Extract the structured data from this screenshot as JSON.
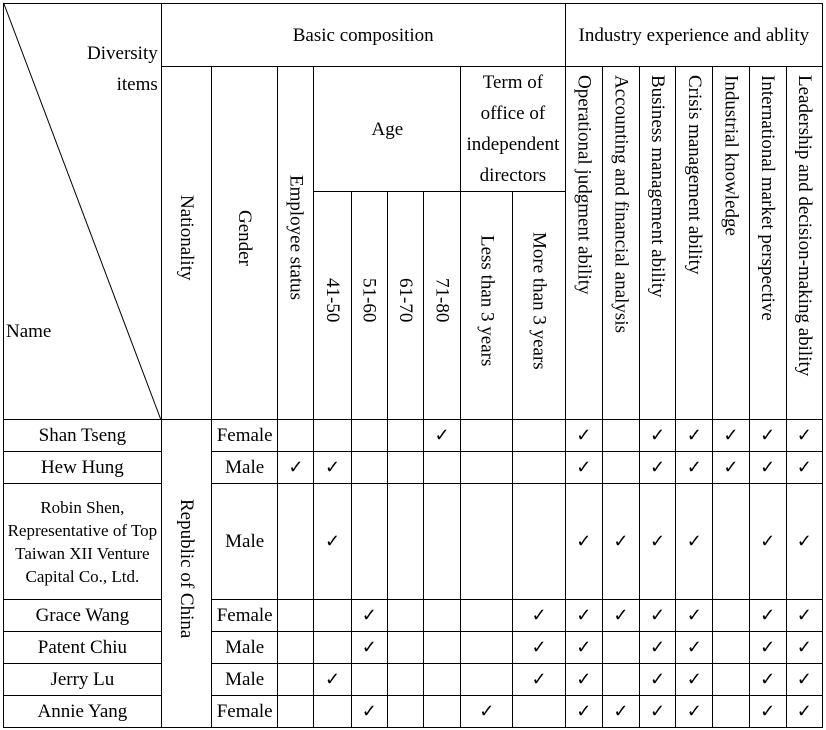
{
  "header": {
    "diversity_items": "Diversity items",
    "name": "Name",
    "basic_composition": "Basic composition",
    "industry_experience": "Industry experience and ablity",
    "nationality": "Nationality",
    "gender": "Gender",
    "employee_status": "Employee status",
    "age": "Age",
    "term_of_office": "Term of office of independent directors",
    "age_groups": [
      "41-50",
      "51-60",
      "61-70",
      "71-80"
    ],
    "terms": [
      "Less than 3 years",
      "More than 3 years"
    ],
    "abilities": [
      "Operational judgment ability",
      "Accounting and financial analysis",
      "Business management ability",
      "Crisis management ability",
      "Industrial knowledge",
      "International market perspective",
      "Leadership and decision-making ability"
    ]
  },
  "nationality_value": "Republic of China",
  "check_mark": "✓",
  "rows": [
    {
      "name": "Shan Tseng",
      "gender": "Female",
      "marks": [
        0,
        0,
        0,
        0,
        1,
        0,
        0,
        1,
        0,
        1,
        1,
        1,
        1,
        1
      ]
    },
    {
      "name": "Hew Hung",
      "gender": "Male",
      "marks": [
        1,
        1,
        0,
        0,
        0,
        0,
        0,
        1,
        0,
        1,
        1,
        1,
        1,
        1
      ]
    },
    {
      "name": "Robin Shen, Representative of Top Taiwan XII Venture Capital Co., Ltd.",
      "gender": "Male",
      "marks": [
        0,
        1,
        0,
        0,
        0,
        0,
        0,
        1,
        1,
        1,
        1,
        0,
        1,
        1
      ]
    },
    {
      "name": "Grace Wang",
      "gender": "Female",
      "marks": [
        0,
        0,
        1,
        0,
        0,
        0,
        1,
        1,
        1,
        1,
        1,
        0,
        1,
        1
      ]
    },
    {
      "name": "Patent Chiu",
      "gender": "Male",
      "marks": [
        0,
        0,
        1,
        0,
        0,
        0,
        1,
        1,
        0,
        1,
        1,
        0,
        1,
        1
      ]
    },
    {
      "name": "Jerry Lu",
      "gender": "Male",
      "marks": [
        0,
        1,
        0,
        0,
        0,
        0,
        1,
        1,
        0,
        1,
        1,
        0,
        1,
        1
      ]
    },
    {
      "name": "Annie Yang",
      "gender": "Female",
      "marks": [
        0,
        0,
        1,
        0,
        0,
        1,
        0,
        1,
        1,
        1,
        1,
        0,
        1,
        1
      ]
    }
  ]
}
